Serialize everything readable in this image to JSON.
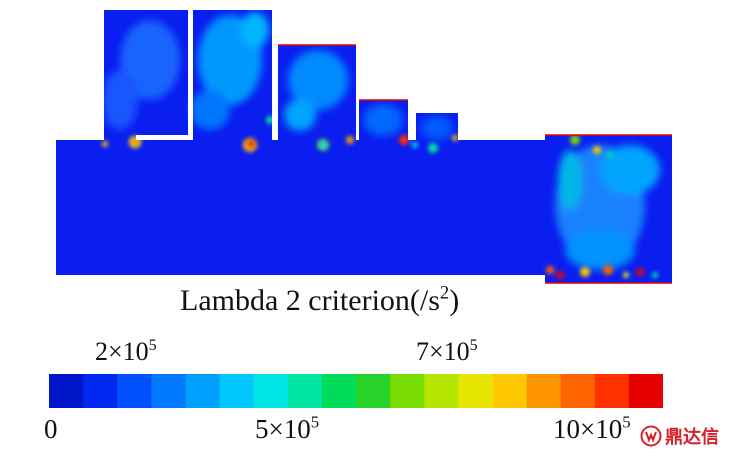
{
  "title": "Lambda 2 criterion(/s",
  "title_sup": "2",
  "title_end": ")",
  "colorbar": {
    "ticks_top": [
      {
        "base": "2×10",
        "exp": "5"
      },
      {
        "base": "7×10",
        "exp": "5"
      }
    ],
    "ticks_bottom": [
      {
        "base": "0",
        "exp": ""
      },
      {
        "base": "5×10",
        "exp": "5"
      },
      {
        "base": "10×10",
        "exp": "5"
      }
    ],
    "colors": [
      "#0014c8",
      "#0028f0",
      "#0050ff",
      "#0078ff",
      "#00a0ff",
      "#00c8ff",
      "#00e6e6",
      "#00e6a0",
      "#00dc5a",
      "#28d228",
      "#78dc00",
      "#b4e600",
      "#e6e600",
      "#ffc800",
      "#ff9600",
      "#ff6400",
      "#ff3200",
      "#e60000"
    ]
  },
  "watermark": {
    "text": "鼎达信",
    "color": "#d6212b"
  }
}
